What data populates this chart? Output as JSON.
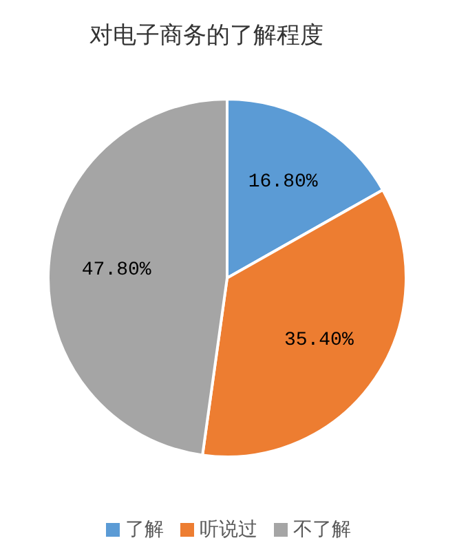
{
  "chart_data": {
    "type": "pie",
    "title": "对电子商务的了解程度",
    "categories": [
      "了解",
      "听说过",
      "不了解"
    ],
    "values": [
      16.8,
      35.4,
      47.8
    ],
    "colors": [
      "#5b9bd5",
      "#ed7d31",
      "#a5a5a5"
    ],
    "value_labels": [
      "16.80%",
      "35.40%",
      "47.80%"
    ],
    "legend": "bottom"
  }
}
